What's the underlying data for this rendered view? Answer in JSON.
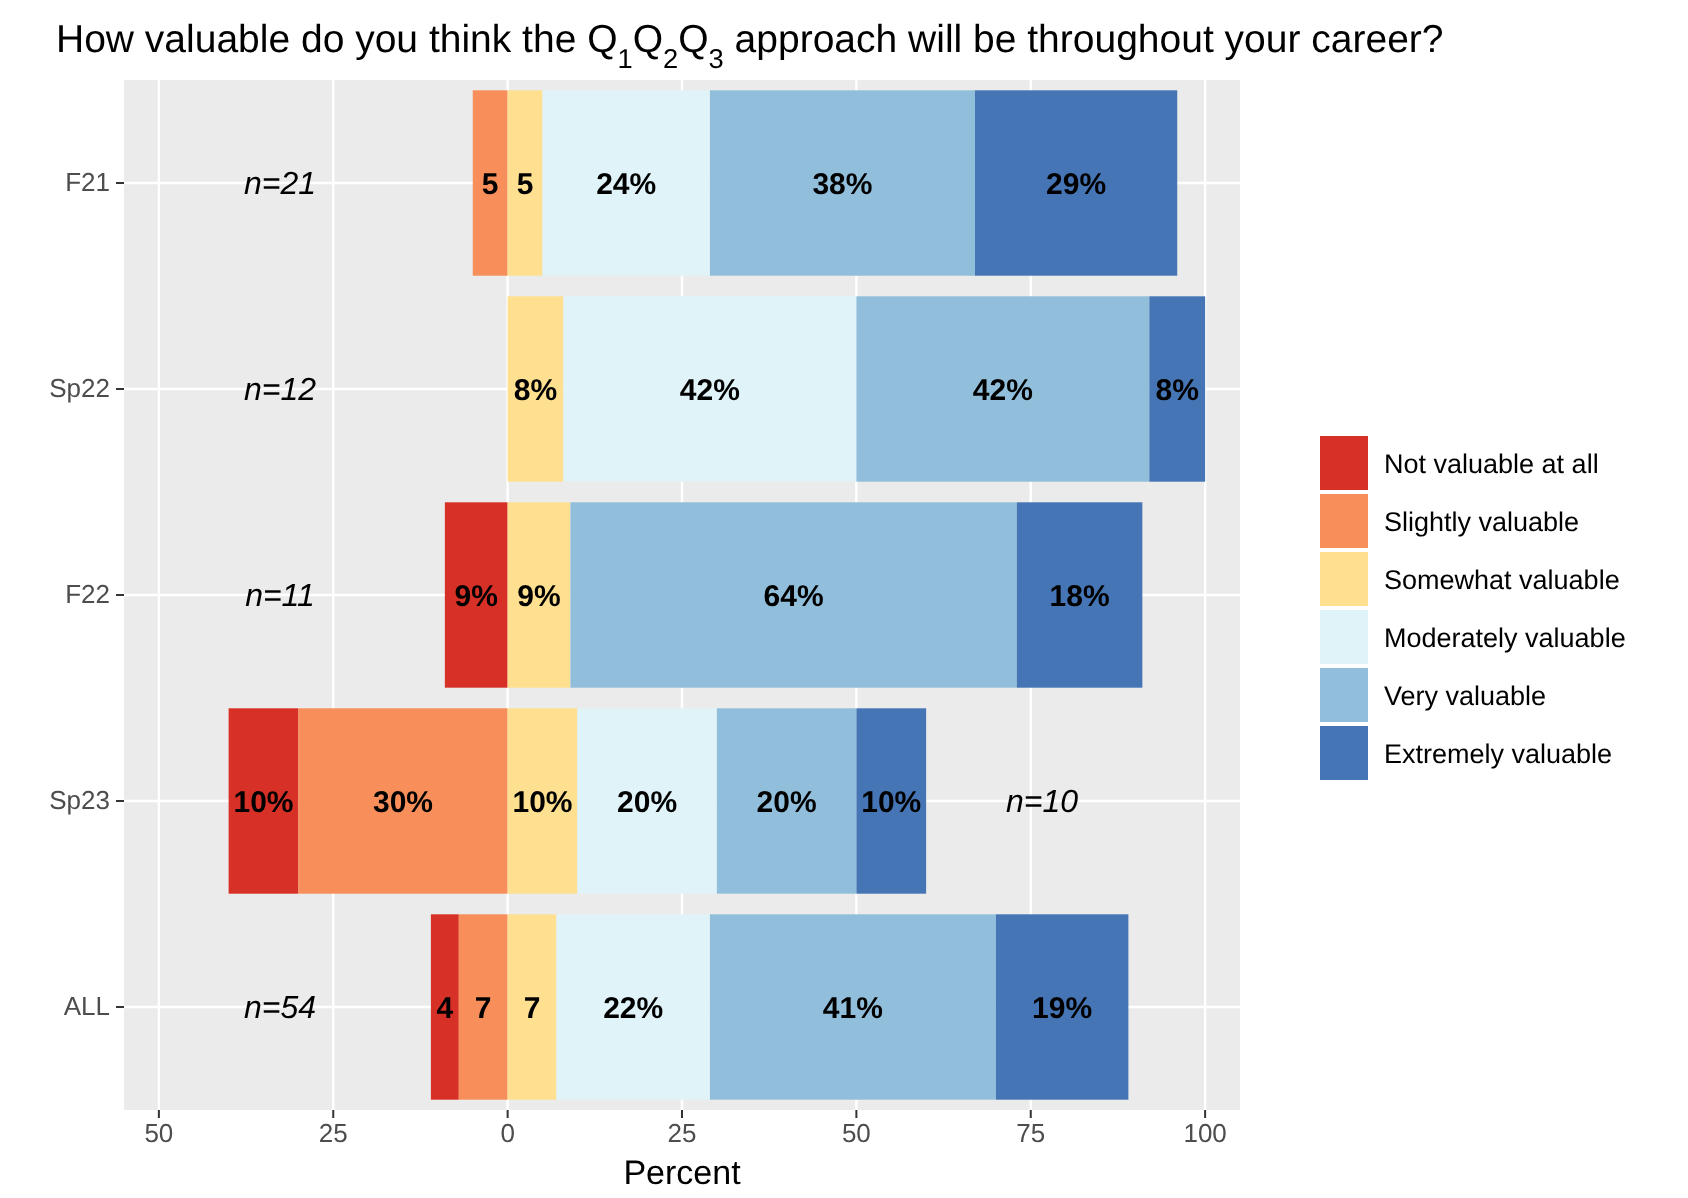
{
  "chart_data": {
    "type": "bar",
    "orientation": "horizontal",
    "title": "How valuable do you think the Q$_{1}$Q$_{2}$Q$_{3}$ approach will be throughout your career?",
    "xlabel": "Percent",
    "categories": [
      "F21",
      "Sp22",
      "F22",
      "Sp23",
      "ALL"
    ],
    "series": [
      {
        "name": "Not valuable at all",
        "color": "#d73027",
        "base": [
          null,
          null,
          -9,
          -40,
          -11
        ],
        "values": [
          null,
          null,
          9,
          10,
          4
        ],
        "value_labels": [
          null,
          null,
          "9%",
          "10%",
          "4"
        ]
      },
      {
        "name": "Slightly valuable",
        "color": "#f88f5a",
        "base": [
          -5,
          null,
          null,
          -30,
          -7
        ],
        "values": [
          5,
          null,
          null,
          30,
          7
        ],
        "value_labels": [
          "5",
          null,
          null,
          "30%",
          "7"
        ]
      },
      {
        "name": "Somewhat valuable",
        "color": "#fee090",
        "base": [
          0,
          0,
          0,
          0,
          0
        ],
        "values": [
          5,
          8,
          9,
          10,
          7
        ],
        "value_labels": [
          "5",
          "8%",
          "9%",
          "10%",
          "7"
        ]
      },
      {
        "name": "Moderately valuable",
        "color": "#e0f3f8",
        "base": [
          5,
          8,
          null,
          10,
          7
        ],
        "values": [
          24,
          42,
          null,
          20,
          22
        ],
        "value_labels": [
          "24%",
          "42%",
          null,
          "20%",
          "22%"
        ]
      },
      {
        "name": "Very valuable",
        "color": "#91bfdb",
        "base": [
          29,
          50,
          9,
          30,
          29
        ],
        "values": [
          38,
          42,
          64,
          20,
          41
        ],
        "value_labels": [
          "38%",
          "42%",
          "64%",
          "20%",
          "41%"
        ]
      },
      {
        "name": "Extremely valuable",
        "color": "#4575b4",
        "base": [
          67,
          92,
          73,
          50,
          70
        ],
        "values": [
          29,
          8,
          18,
          10,
          19
        ],
        "value_labels": [
          "29%",
          "8%",
          "18%",
          "10%",
          "19%"
        ]
      }
    ],
    "xlim": [
      -55,
      105
    ],
    "xticks": [
      {
        "value": -50,
        "label": "50"
      },
      {
        "value": -25,
        "label": "25"
      },
      0,
      25,
      50,
      75,
      100
    ],
    "annotations": [
      "n=21",
      "n=12",
      "n=11",
      "n=10",
      "n=54"
    ],
    "grid": true,
    "legend": "right"
  }
}
